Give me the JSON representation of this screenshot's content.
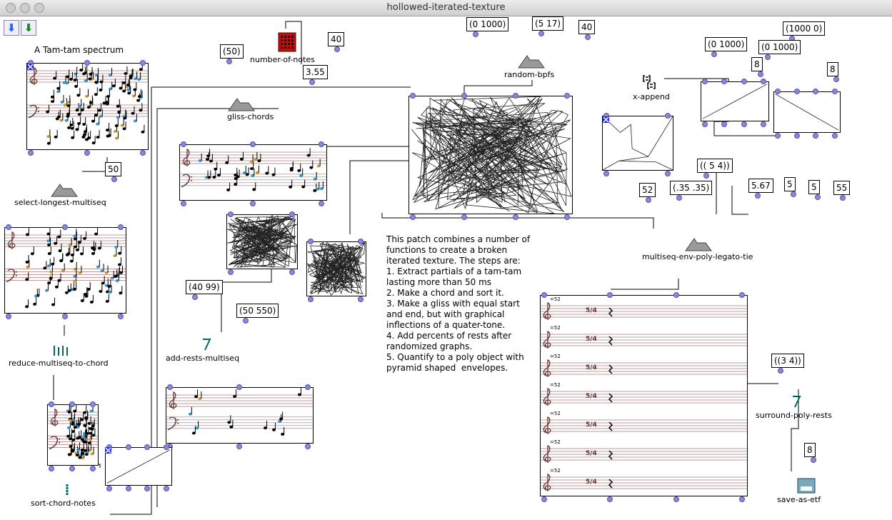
{
  "window": {
    "title": "hollowed-iterated-texture"
  },
  "toolbar": {
    "down_blue": "⬇",
    "down_green": "⬇",
    "down_blue_icon": "arrow-down-blue-icon",
    "down_green_icon": "arrow-down-green-icon"
  },
  "labels": {
    "tamtam": "A Tam-tam spectrum",
    "number_of_notes": "number-of-notes",
    "gliss_chords": "gliss-chords",
    "random_bpfs": "random-bpfs",
    "x_append": "x-append",
    "select_longest": "select-longest-multiseq",
    "env_poly": "multiseq-env-poly-legato-tie",
    "reduce": "reduce-multiseq-to-chord",
    "add_rests": "add-rests-multiseq",
    "surround": "surround-poly-rests",
    "sort_chord": "sort-chord-notes",
    "save_etf": "save-as-etf"
  },
  "values": [
    "40",
    "(50)",
    "3.55",
    "50",
    "(0 1000)",
    "(5 17)",
    "40",
    "(0 1000)",
    "8",
    "(1000 0)",
    "(0 1000)",
    "8",
    "(( 5 4))",
    "52",
    "(.35 .35)",
    "5.67",
    "5",
    "5",
    "55",
    "(40 99)",
    "(50 550)",
    "((3 4))",
    "8"
  ],
  "comment": "This patch combines a number of functions to create a broken iterated texture. The steps are:\n1. Extract partials of a tam-tam lasting more than 50 ms\n2. Make a chord and sort it.\n3. Make a gliss with equal start and end, but with graphical inflections of a quater-tone.\n4. Add percents of rests after randomized graphs.\n5. Quantify to a poly object with pyramid shaped  envelopes.",
  "poly": {
    "tempo": "=52",
    "time_sig": "5/4"
  },
  "colors": {
    "inlet": "#8888dd",
    "accent": "#2222ff"
  }
}
